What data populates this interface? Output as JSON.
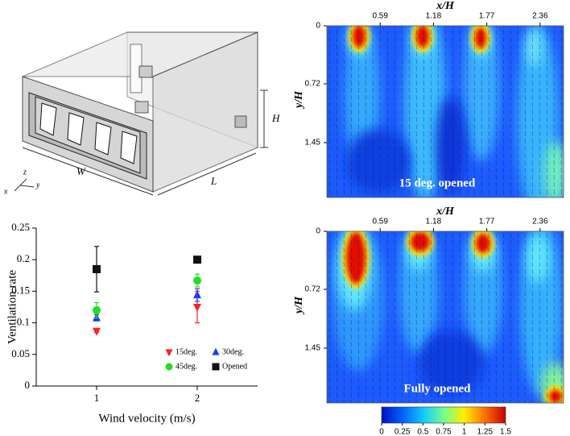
{
  "diagram": {
    "labels": {
      "width": "W",
      "length": "L",
      "height": "H",
      "axis_x": "x",
      "axis_y": "y",
      "axis_z": "z"
    }
  },
  "chart_data": [
    {
      "type": "scatter",
      "x_label": "Wind velocity (m/s)",
      "y_label": "Ventilation rate",
      "x": [
        1,
        2
      ],
      "xlim": [
        0.4,
        2.6
      ],
      "xticks": [
        1,
        2
      ],
      "ylim": [
        0,
        0.25
      ],
      "yticks": [
        0,
        0.05,
        0.1,
        0.15,
        0.2,
        0.25
      ],
      "legend": "lower right",
      "series": [
        {
          "name": "15deg.",
          "color": "#ff2020",
          "marker": "triangle-down",
          "values": [
            0.087,
            0.125
          ],
          "errors": [
            0.002,
            0.025
          ]
        },
        {
          "name": "30deg.",
          "color": "#1a3cff",
          "marker": "triangle-up",
          "values": [
            0.108,
            0.144
          ],
          "errors": [
            0.005,
            0.01
          ]
        },
        {
          "name": "45deg.",
          "color": "#22dd22",
          "marker": "circle",
          "values": [
            0.12,
            0.167
          ],
          "errors": [
            0.012,
            0.01
          ]
        },
        {
          "name": "Opened",
          "color": "#111111",
          "marker": "square",
          "values": [
            0.185,
            0.2
          ],
          "errors": [
            0.036,
            0.005
          ]
        }
      ]
    },
    {
      "type": "contour",
      "x_label": "x/H",
      "y_label": "y/H",
      "xlim": [
        0,
        2.62
      ],
      "xticks": [
        0.59,
        1.18,
        1.77,
        2.36
      ],
      "ylim": [
        0,
        2.13
      ],
      "y_inverted": true,
      "yticks": [
        0,
        0.72,
        1.45
      ],
      "annotation": "15 deg. opened"
    },
    {
      "type": "contour",
      "x_label": "x/H",
      "y_label": "y/H",
      "xlim": [
        0,
        2.62
      ],
      "xticks": [
        0.59,
        1.18,
        1.77,
        2.36
      ],
      "ylim": [
        0,
        2.13
      ],
      "y_inverted": true,
      "yticks": [
        0,
        0.72,
        1.45
      ],
      "annotation": "Fully opened",
      "colorbar": {
        "lim": [
          0,
          1.5
        ],
        "ticks": [
          0,
          0.25,
          0.5,
          0.75,
          1,
          1.25,
          1.5
        ],
        "colors": [
          "#0010c0",
          "#0060ff",
          "#10c8ff",
          "#70ff90",
          "#ffee00",
          "#ff7000",
          "#c80000"
        ]
      }
    }
  ]
}
